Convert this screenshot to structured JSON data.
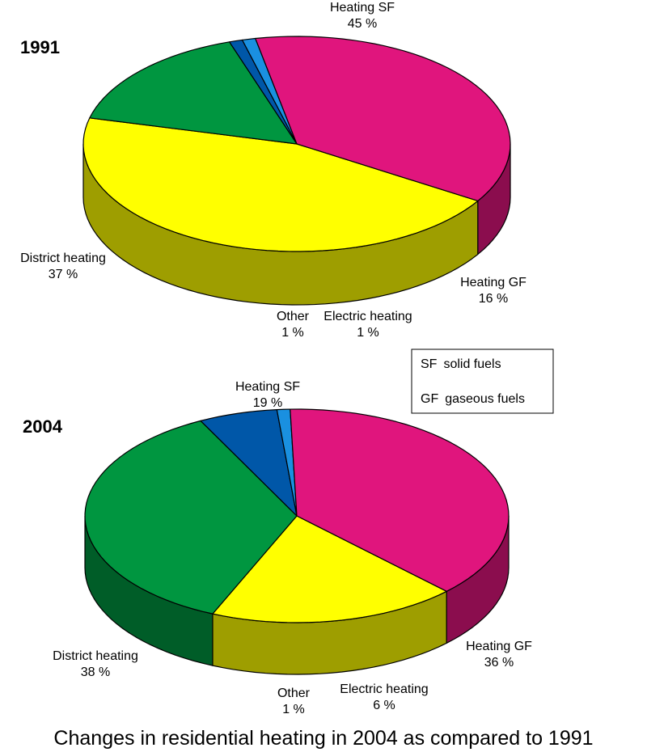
{
  "caption": "Changes in residential heating in 2004 as compared to 1991",
  "legend": {
    "items": [
      {
        "abbr": "SF",
        "text": "solid fuels"
      },
      {
        "abbr": "GF",
        "text": "gaseous fuels"
      }
    ]
  },
  "colors": {
    "heating_sf": "#ffff00",
    "heating_gf": "#009640",
    "electric": "#0057a8",
    "other": "#1a90e0",
    "district": "#e0157d"
  },
  "chart_data": [
    {
      "type": "pie",
      "title": "1991",
      "slices": [
        {
          "name": "Heating SF",
          "value": 45,
          "value_label": "45 %",
          "color_key": "heating_sf"
        },
        {
          "name": "Heating GF",
          "value": 16,
          "value_label": "16 %",
          "color_key": "heating_gf"
        },
        {
          "name": "Electric heating",
          "value": 1,
          "value_label": "1 %",
          "color_key": "electric"
        },
        {
          "name": "Other",
          "value": 1,
          "value_label": "1 %",
          "color_key": "other"
        },
        {
          "name": "District heating",
          "value": 37,
          "value_label": "37 %",
          "color_key": "district"
        }
      ]
    },
    {
      "type": "pie",
      "title": "2004",
      "slices": [
        {
          "name": "Heating SF",
          "value": 19,
          "value_label": "19 %",
          "color_key": "heating_sf"
        },
        {
          "name": "Heating GF",
          "value": 36,
          "value_label": "36 %",
          "color_key": "heating_gf"
        },
        {
          "name": "Electric heating",
          "value": 6,
          "value_label": "6 %",
          "color_key": "electric"
        },
        {
          "name": "Other",
          "value": 1,
          "value_label": "1 %",
          "color_key": "other"
        },
        {
          "name": "District heating",
          "value": 38,
          "value_label": "38 %",
          "color_key": "district"
        }
      ]
    }
  ]
}
